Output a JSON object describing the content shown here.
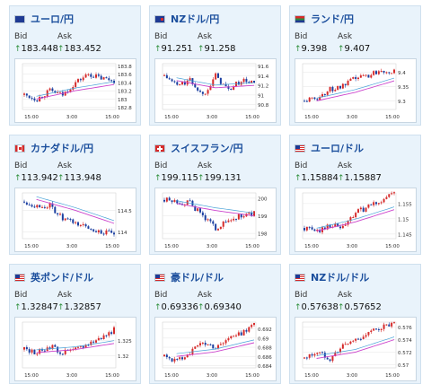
{
  "bid_label": "Bid",
  "ask_label": "Ask",
  "arrow": "↑",
  "colors": {
    "up": "#d62b2b",
    "down": "#1b3fa0",
    "ma": "#cc44cc",
    "ma2": "#4aa3d8"
  },
  "time_ticks": [
    "15:00",
    "3:00",
    "15:00"
  ],
  "cards": [
    {
      "title": "ユーロ/円",
      "flag": "eu",
      "bid": "183.448",
      "ask": "183.452",
      "yticks": [
        "183.8",
        "183.6",
        "183.4",
        "183.2",
        "183",
        "182.8"
      ],
      "ymin": 182.75,
      "ymax": 183.85,
      "chart_data": {
        "type": "candlestick",
        "start": 183.1,
        "end": 183.45,
        "trend": [
          183.1,
          183.0,
          183.2,
          183.1,
          183.4,
          183.6,
          183.5,
          183.45
        ],
        "ma": [
          183.0,
          183.2,
          183.35
        ]
      }
    },
    {
      "title": "NZドル/円",
      "flag": "nz",
      "bid": "91.251",
      "ask": "91.258",
      "yticks": [
        "91.6",
        "91.4",
        "91.2",
        "91",
        "90.8"
      ],
      "ymin": 90.7,
      "ymax": 91.65,
      "chart_data": {
        "type": "candlestick",
        "trend": [
          91.4,
          91.2,
          91.3,
          91.0,
          91.4,
          91.1,
          91.3,
          91.25
        ],
        "ma": [
          91.3,
          91.15,
          91.2
        ]
      }
    },
    {
      "title": "ランド/円",
      "flag": "za",
      "bid": "9.398",
      "ask": "9.407",
      "yticks": [
        "9.4",
        "9.35",
        "9.3"
      ],
      "ymin": 9.27,
      "ymax": 9.43,
      "chart_data": {
        "type": "candlestick",
        "trend": [
          9.3,
          9.31,
          9.34,
          9.35,
          9.38,
          9.39,
          9.41,
          9.4
        ],
        "ma": [
          9.3,
          9.33,
          9.37
        ]
      }
    },
    {
      "title": "カナダドル/円",
      "flag": "ca",
      "bid": "113.942",
      "ask": "113.948",
      "yticks": [
        "114.5",
        "114"
      ],
      "ymin": 113.85,
      "ymax": 114.9,
      "chart_data": {
        "type": "candlestick",
        "trend": [
          114.7,
          114.6,
          114.6,
          114.3,
          114.2,
          114.1,
          114.0,
          113.95
        ],
        "ma": [
          114.75,
          114.5,
          114.2
        ]
      }
    },
    {
      "title": "スイスフラン/円",
      "flag": "ch",
      "bid": "199.115",
      "ask": "199.131",
      "yticks": [
        "200",
        "199",
        "198"
      ],
      "ymin": 197.7,
      "ymax": 200.3,
      "chart_data": {
        "type": "candlestick",
        "trend": [
          199.9,
          199.8,
          199.7,
          199.0,
          198.3,
          198.7,
          199.0,
          199.12
        ],
        "ma": [
          199.7,
          199.3,
          199.0
        ]
      }
    },
    {
      "title": "ユーロ/ドル",
      "flag": "us",
      "bid": "1.15884",
      "ask": "1.15887",
      "yticks": [
        "1.155",
        "1.15",
        "1.145"
      ],
      "ymin": 1.1435,
      "ymax": 1.1585,
      "chart_data": {
        "type": "candlestick",
        "trend": [
          1.147,
          1.146,
          1.148,
          1.147,
          1.152,
          1.154,
          1.156,
          1.1588
        ],
        "ma": [
          1.146,
          1.149,
          1.153
        ]
      }
    },
    {
      "title": "英ポンド/ドル",
      "flag": "us",
      "bid": "1.32847",
      "ask": "1.32857",
      "yticks": [
        "1.325",
        "1.32"
      ],
      "ymin": 1.316,
      "ymax": 1.331,
      "chart_data": {
        "type": "candlestick",
        "trend": [
          1.322,
          1.321,
          1.323,
          1.321,
          1.322,
          1.324,
          1.326,
          1.3285
        ],
        "ma": [
          1.321,
          1.322,
          1.324
        ]
      }
    },
    {
      "title": "豪ドル/ドル",
      "flag": "us",
      "bid": "0.69336",
      "ask": "0.69340",
      "yticks": [
        "0.692",
        "0.69",
        "0.688",
        "0.686",
        "0.684"
      ],
      "ymin": 0.6835,
      "ymax": 0.6935,
      "chart_data": {
        "type": "candlestick",
        "trend": [
          0.686,
          0.685,
          0.687,
          0.689,
          0.688,
          0.69,
          0.691,
          0.6934
        ],
        "ma": [
          0.686,
          0.687,
          0.689
        ]
      }
    },
    {
      "title": "NZドル/ドル",
      "flag": "us",
      "bid": "0.57638",
      "ask": "0.57652",
      "yticks": [
        "0.576",
        "0.574",
        "0.572",
        "0.57"
      ],
      "ymin": 0.5695,
      "ymax": 0.5768,
      "chart_data": {
        "type": "candlestick",
        "trend": [
          0.571,
          0.572,
          0.571,
          0.573,
          0.574,
          0.575,
          0.576,
          0.5764
        ],
        "ma": [
          0.571,
          0.572,
          0.574
        ]
      }
    }
  ]
}
